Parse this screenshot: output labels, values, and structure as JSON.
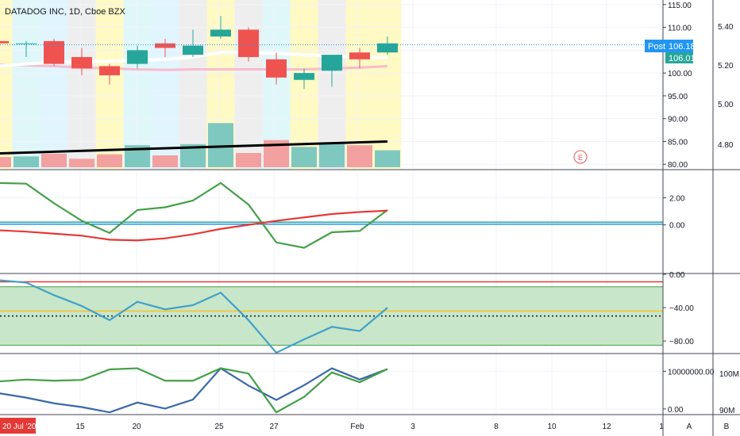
{
  "symbol_title": "DATADOG INC, 1D, Cboe BZX",
  "earnings_marker": "E",
  "colors": {
    "up": "#26a69a",
    "down": "#ef5350",
    "accent": "#2196f3",
    "grid": "#f0f3fa",
    "axis_text": "#131722"
  },
  "badges": {
    "post_label": "Post",
    "post_value": "106.18",
    "last_value": "106.01",
    "date_badge": "20 Jul '20"
  },
  "x_axis": {
    "ticks": [
      "15",
      "20",
      "25",
      "27",
      "Feb",
      "3",
      "8",
      "10",
      "12",
      "1"
    ],
    "bottom_letters": [
      "A",
      "B"
    ]
  },
  "chart_data": [
    {
      "type": "candlestick",
      "panel": "price",
      "y_axis_left": {
        "ticks": [
          "115.00",
          "110.00",
          "105.00",
          "100.00",
          "95.00",
          "90.00",
          "85.00",
          "80.00"
        ],
        "ylim": [
          79,
          116
        ]
      },
      "y_axis_right": {
        "ticks": [
          "5.40",
          "5.20",
          "5.00",
          "4.80"
        ]
      },
      "candles": [
        {
          "o": 107,
          "h": 108.5,
          "l": 104.5,
          "c": 106.5
        },
        {
          "o": 106.5,
          "h": 107,
          "l": 103.5,
          "c": 106.5
        },
        {
          "o": 107,
          "h": 107.5,
          "l": 101.5,
          "c": 102
        },
        {
          "o": 103.5,
          "h": 105.5,
          "l": 99.5,
          "c": 101
        },
        {
          "o": 101.5,
          "h": 102,
          "l": 97.5,
          "c": 99.5
        },
        {
          "o": 102,
          "h": 106,
          "l": 101,
          "c": 105
        },
        {
          "o": 106.5,
          "h": 107.5,
          "l": 103.5,
          "c": 105.5
        },
        {
          "o": 104,
          "h": 109.5,
          "l": 103.5,
          "c": 106
        },
        {
          "o": 108,
          "h": 112.5,
          "l": 107.5,
          "c": 109.5
        },
        {
          "o": 109.5,
          "h": 110,
          "l": 102.5,
          "c": 103.5
        },
        {
          "o": 103,
          "h": 104.5,
          "l": 97.5,
          "c": 99
        },
        {
          "o": 98.5,
          "h": 101,
          "l": 96.5,
          "c": 100
        },
        {
          "o": 100.5,
          "h": 104,
          "l": 97,
          "c": 104
        },
        {
          "o": 104.5,
          "h": 105.5,
          "l": 101,
          "c": 103
        },
        {
          "o": 104.5,
          "h": 108,
          "l": 104,
          "c": 106.5
        }
      ],
      "moving_average_white": [
        101.5,
        102,
        102.3,
        102.5,
        102.6,
        102.8,
        103,
        103.5,
        104.5,
        104.5,
        104.3,
        104,
        103.8,
        103.5,
        103.4
      ],
      "moving_average_pink": [
        101.8,
        101.7,
        101.5,
        101.2,
        101,
        100.8,
        100.7,
        100.8,
        100.8,
        100.8,
        100.8,
        100.8,
        101,
        101.2,
        101.5
      ],
      "trend_line": [
        [
          -1,
          82.2
        ],
        [
          14,
          85
        ]
      ],
      "volume": [
        3,
        3.2,
        4,
        2.5,
        3.8,
        6.5,
        3.5,
        6.8,
        13,
        4.2,
        8,
        6,
        6.8,
        6.5,
        5
      ],
      "background_bands": [
        "#fff9c4",
        "#e0f7fa",
        "#e1f5fe",
        "#eeeeee",
        "#fff9c4",
        "#e0f7fa",
        "#e1f5fe",
        "#eeeeee",
        "#fff9c4",
        "#eeeeee",
        "#e0f7fa",
        "#fff9c4",
        "#eeeeee",
        "#fff9c4",
        "#fff9c4"
      ]
    },
    {
      "type": "line",
      "panel": "oscillator_1",
      "y_axis": {
        "ticks": [
          "2.00",
          "0.00"
        ],
        "ylim": [
          -3.6,
          3.5
        ]
      },
      "series": [
        {
          "color": "#43a047",
          "values": [
            3.1,
            3.05,
            1.6,
            0.3,
            -0.6,
            1.1,
            1.3,
            1.8,
            3.1,
            1.5,
            -1.3,
            -1.7,
            -0.55,
            -0.45,
            1.1
          ]
        },
        {
          "color": "#e53935",
          "values": [
            -0.4,
            -0.5,
            -0.65,
            -0.8,
            -1.1,
            -1.15,
            -1.0,
            -0.7,
            -0.3,
            0.0,
            0.3,
            0.55,
            0.8,
            0.95,
            1.05
          ]
        }
      ],
      "reference_lines": [
        {
          "value": 0.2,
          "color": "#26a69a"
        },
        {
          "value": 0.05,
          "color": "#2196f3"
        }
      ]
    },
    {
      "type": "line",
      "panel": "oscillator_2",
      "y_axis": {
        "ticks": [
          "0.00",
          "−40.00",
          "−80.00"
        ],
        "ylim": [
          -95,
          0
        ]
      },
      "series": [
        {
          "color": "#42a0c8",
          "values": [
            -7,
            -10,
            -25,
            -38,
            -55,
            -33,
            -42,
            -37,
            -22,
            -55,
            -94,
            -78,
            -63,
            -68,
            -40
          ]
        }
      ],
      "band": [
        -15,
        -85
      ],
      "reference_lines": [
        {
          "value": -9,
          "color": "#e53935"
        },
        {
          "value": -44,
          "color": "#fbc02d"
        },
        {
          "value": -50,
          "color": "#131722"
        }
      ]
    },
    {
      "type": "line",
      "panel": "oscillator_3",
      "y_axis": {
        "ticks": [
          "10000000.00",
          "0.00"
        ],
        "ylim": [
          -1500000,
          14500000
        ]
      },
      "y_axis_right": {
        "ticks": [
          "100M",
          "90M"
        ]
      },
      "series": [
        {
          "color": "#3a68a8",
          "values": [
            4200000,
            3000000,
            1500000,
            500000,
            -900000,
            1700000,
            100000,
            2500000,
            10800000,
            6200000,
            2400000,
            6300000,
            10800000,
            7800000,
            10600000
          ]
        },
        {
          "color": "#43a047",
          "values": [
            7300000,
            7800000,
            7500000,
            7700000,
            10500000,
            10800000,
            7500000,
            7500000,
            10800000,
            9400000,
            -900000,
            3200000,
            9700000,
            7100000,
            10600000
          ]
        }
      ]
    }
  ]
}
